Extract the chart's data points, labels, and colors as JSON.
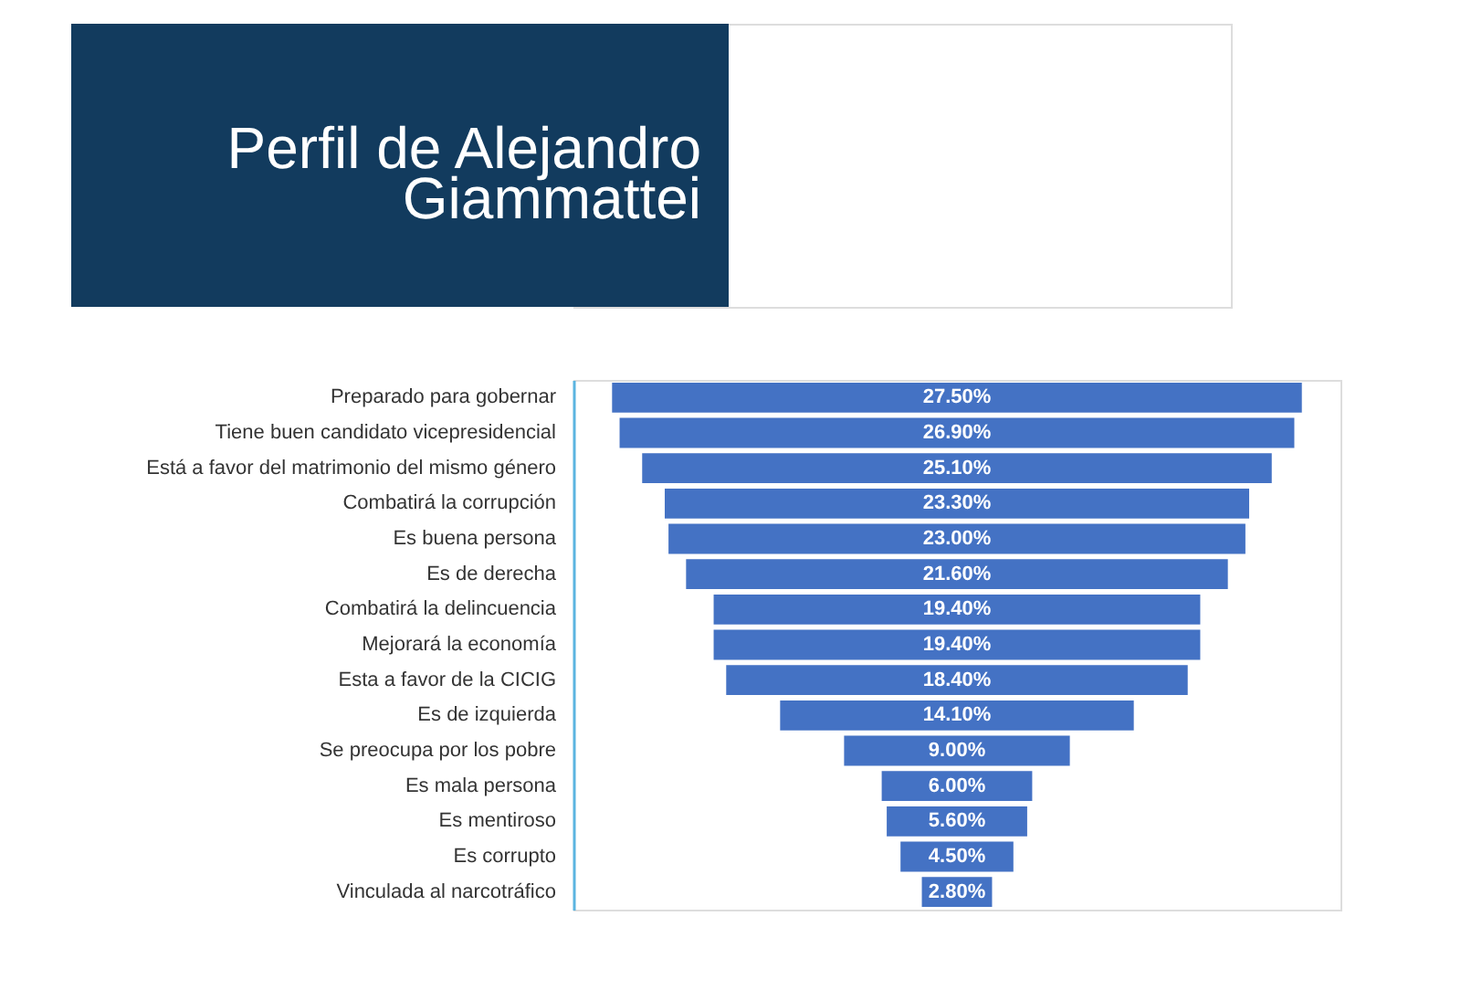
{
  "chart_data": {
    "type": "other",
    "title": "Perfil de Alejandro Giammattei",
    "categories": [
      "Preparado para gobernar",
      "Tiene buen candidato vicepresidencial",
      "Está a favor del matrimonio del mismo género",
      "Combatirá la corrupción",
      "Es buena persona",
      "Es de derecha",
      "Combatirá la delincuencia",
      "Mejorará la economía",
      "Esta a favor de la CICIG",
      "Es de izquierda",
      "Se preocupa por los pobre",
      "Es mala persona",
      "Es mentiroso",
      "Es corrupto",
      "Vinculada al narcotráfico"
    ],
    "values": [
      27.5,
      26.9,
      25.1,
      23.3,
      23.0,
      21.6,
      19.4,
      19.4,
      18.4,
      14.1,
      9.0,
      6.0,
      5.6,
      4.5,
      2.8
    ],
    "value_labels": [
      "27.50%",
      "26.90%",
      "25.10%",
      "23.30%",
      "23.00%",
      "21.60%",
      "19.40%",
      "19.40%",
      "18.40%",
      "14.10%",
      "9.00%",
      "6.00%",
      "5.60%",
      "4.50%",
      "2.80%"
    ],
    "color": "#4472c4",
    "data_labels": true
  }
}
